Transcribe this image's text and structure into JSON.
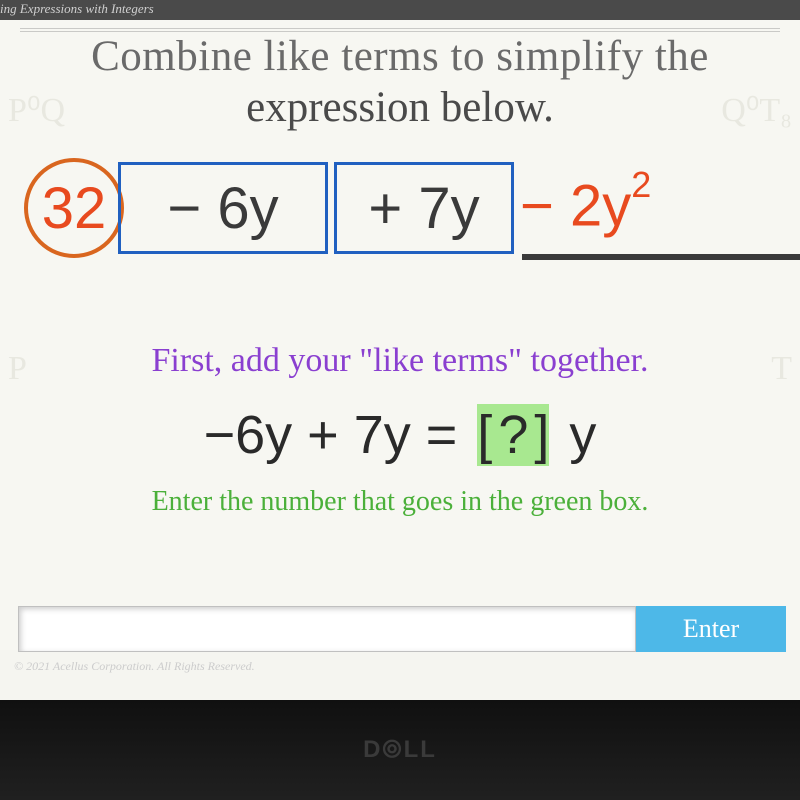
{
  "topbar": {
    "text": "ing Expressions with Integers"
  },
  "prompt": {
    "line1": "Combine like terms to simplify the",
    "line2": "expression below.",
    "fontsize": 43,
    "color": "#4a4a4a"
  },
  "expression": {
    "circled": {
      "value": "32",
      "border_color": "#d9661f",
      "text_color": "#e84a1f"
    },
    "box1": {
      "text": "−  6y",
      "border_color": "#2060c0",
      "text_color": "#3a3a3a"
    },
    "box2": {
      "text": "+ 7y",
      "border_color": "#2060c0",
      "text_color": "#3a3a3a"
    },
    "tail": {
      "prefix": "− 2y",
      "sup": "2",
      "text_color": "#e84a1f"
    },
    "underline_color": "#3a3a3a",
    "fontsize": 58
  },
  "instruction1": {
    "text": "First, add your \"like terms\" together.",
    "color": "#8a3fd0",
    "fontsize": 34
  },
  "equation": {
    "lhs": "−6y  +  7y  =",
    "green_box": {
      "left_bracket": "[",
      "placeholder": "?",
      "right_bracket": "]",
      "bg": "#a8e890"
    },
    "rhs_suffix": "y",
    "fontsize": 54,
    "color": "#2a2a2a"
  },
  "instruction2": {
    "text": "Enter the number that goes in the green box.",
    "color": "#4bb03a",
    "fontsize": 28
  },
  "input": {
    "value": "",
    "placeholder": ""
  },
  "enter_button": {
    "label": "Enter",
    "bg": "#4db8e8",
    "color": "#ffffff"
  },
  "footer": {
    "text": "© 2021 Acellus Corporation.  All Rights Reserved."
  },
  "brand": {
    "text": "D⦾LL",
    "color": "#3a3a3a"
  },
  "colors": {
    "page_bg": "#f7f7f2",
    "bezel_bg": "#1a1a1a",
    "watermark": "#e8e8e0"
  },
  "watermarks": {
    "tl": "P⁰Q",
    "tr": "Q⁰T₈",
    "ml": "P",
    "mr": "T"
  }
}
